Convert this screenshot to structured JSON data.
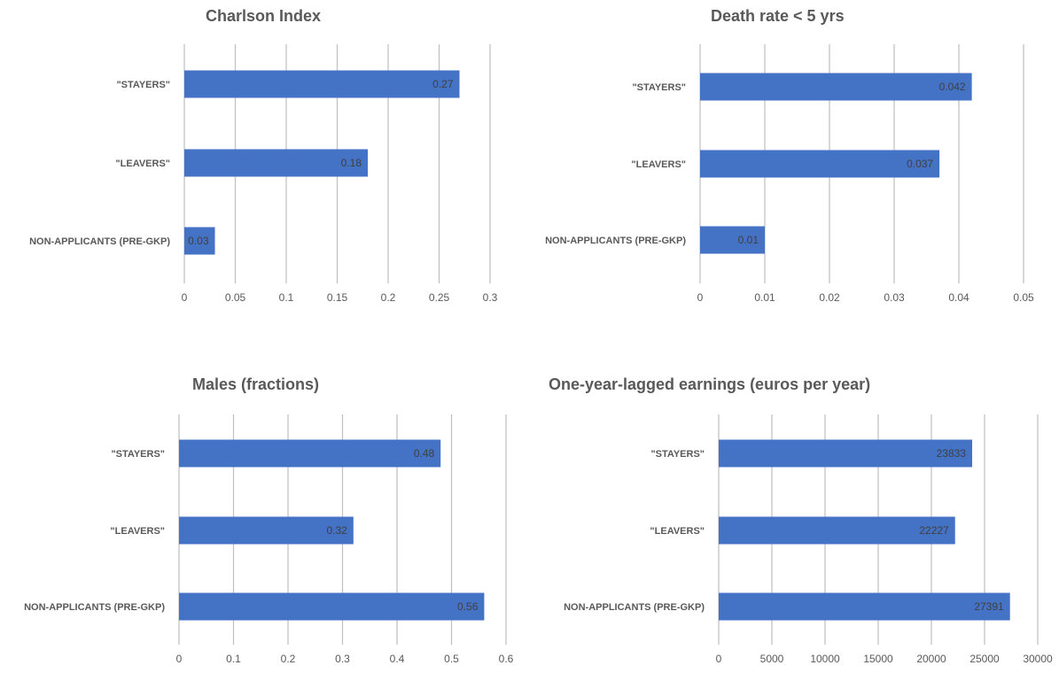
{
  "chart_data": [
    {
      "type": "bar",
      "orientation": "horizontal",
      "title": "Charlson Index",
      "categories": [
        "\"STAYERS\"",
        "\"LEAVERS\"",
        "NON-APPLICANTS (PRE-GKP)"
      ],
      "values": [
        0.27,
        0.18,
        0.03
      ],
      "value_labels": [
        "0.27",
        "0.18",
        "0.03"
      ],
      "xlim": [
        0,
        0.3
      ],
      "xticks": [
        0,
        0.05,
        0.1,
        0.15,
        0.2,
        0.25,
        0.3
      ],
      "xtick_labels": [
        "0",
        "0.05",
        "0.1",
        "0.15",
        "0.2",
        "0.25",
        "0.3"
      ],
      "grid": true,
      "legend": "none",
      "bar_color": "#4472C4"
    },
    {
      "type": "bar",
      "orientation": "horizontal",
      "title": "Death rate < 5 yrs",
      "categories": [
        "\"STAYERS\"",
        "\"LEAVERS\"",
        "NON-APPLICANTS (PRE-GKP)"
      ],
      "values": [
        0.042,
        0.037,
        0.01
      ],
      "value_labels": [
        "0.042",
        "0.037",
        "0.01"
      ],
      "xlim": [
        0,
        0.05
      ],
      "xticks": [
        0,
        0.01,
        0.02,
        0.03,
        0.04,
        0.05
      ],
      "xtick_labels": [
        "0",
        "0.01",
        "0.02",
        "0.03",
        "0.04",
        "0.05"
      ],
      "grid": true,
      "legend": "none",
      "bar_color": "#4472C4"
    },
    {
      "type": "bar",
      "orientation": "horizontal",
      "title": "Males (fractions)",
      "categories": [
        "\"STAYERS\"",
        "\"LEAVERS\"",
        "NON-APPLICANTS (PRE-GKP)"
      ],
      "values": [
        0.48,
        0.32,
        0.56
      ],
      "value_labels": [
        "0.48",
        "0.32",
        "0.56"
      ],
      "xlim": [
        0,
        0.6
      ],
      "xticks": [
        0,
        0.1,
        0.2,
        0.3,
        0.4,
        0.5,
        0.6
      ],
      "xtick_labels": [
        "0",
        "0.1",
        "0.2",
        "0.3",
        "0.4",
        "0.5",
        "0.6"
      ],
      "grid": true,
      "legend": "none",
      "bar_color": "#4472C4"
    },
    {
      "type": "bar",
      "orientation": "horizontal",
      "title": "One-year-lagged earnings (euros per year)",
      "categories": [
        "\"STAYERS\"",
        "\"LEAVERS\"",
        "NON-APPLICANTS (PRE-GKP)"
      ],
      "values": [
        23833,
        22227,
        27391
      ],
      "value_labels": [
        "23833",
        "22227",
        "27391"
      ],
      "xlim": [
        0,
        30000
      ],
      "xticks": [
        0,
        5000,
        10000,
        15000,
        20000,
        25000,
        30000
      ],
      "xtick_labels": [
        "0",
        "5000",
        "10000",
        "15000",
        "20000",
        "25000",
        "30000"
      ],
      "grid": true,
      "legend": "none",
      "bar_color": "#4472C4"
    }
  ],
  "colors": {
    "bar": "#4472C4",
    "grid": "#BFBFBF",
    "text": "#595959",
    "data_label": "#404040"
  }
}
